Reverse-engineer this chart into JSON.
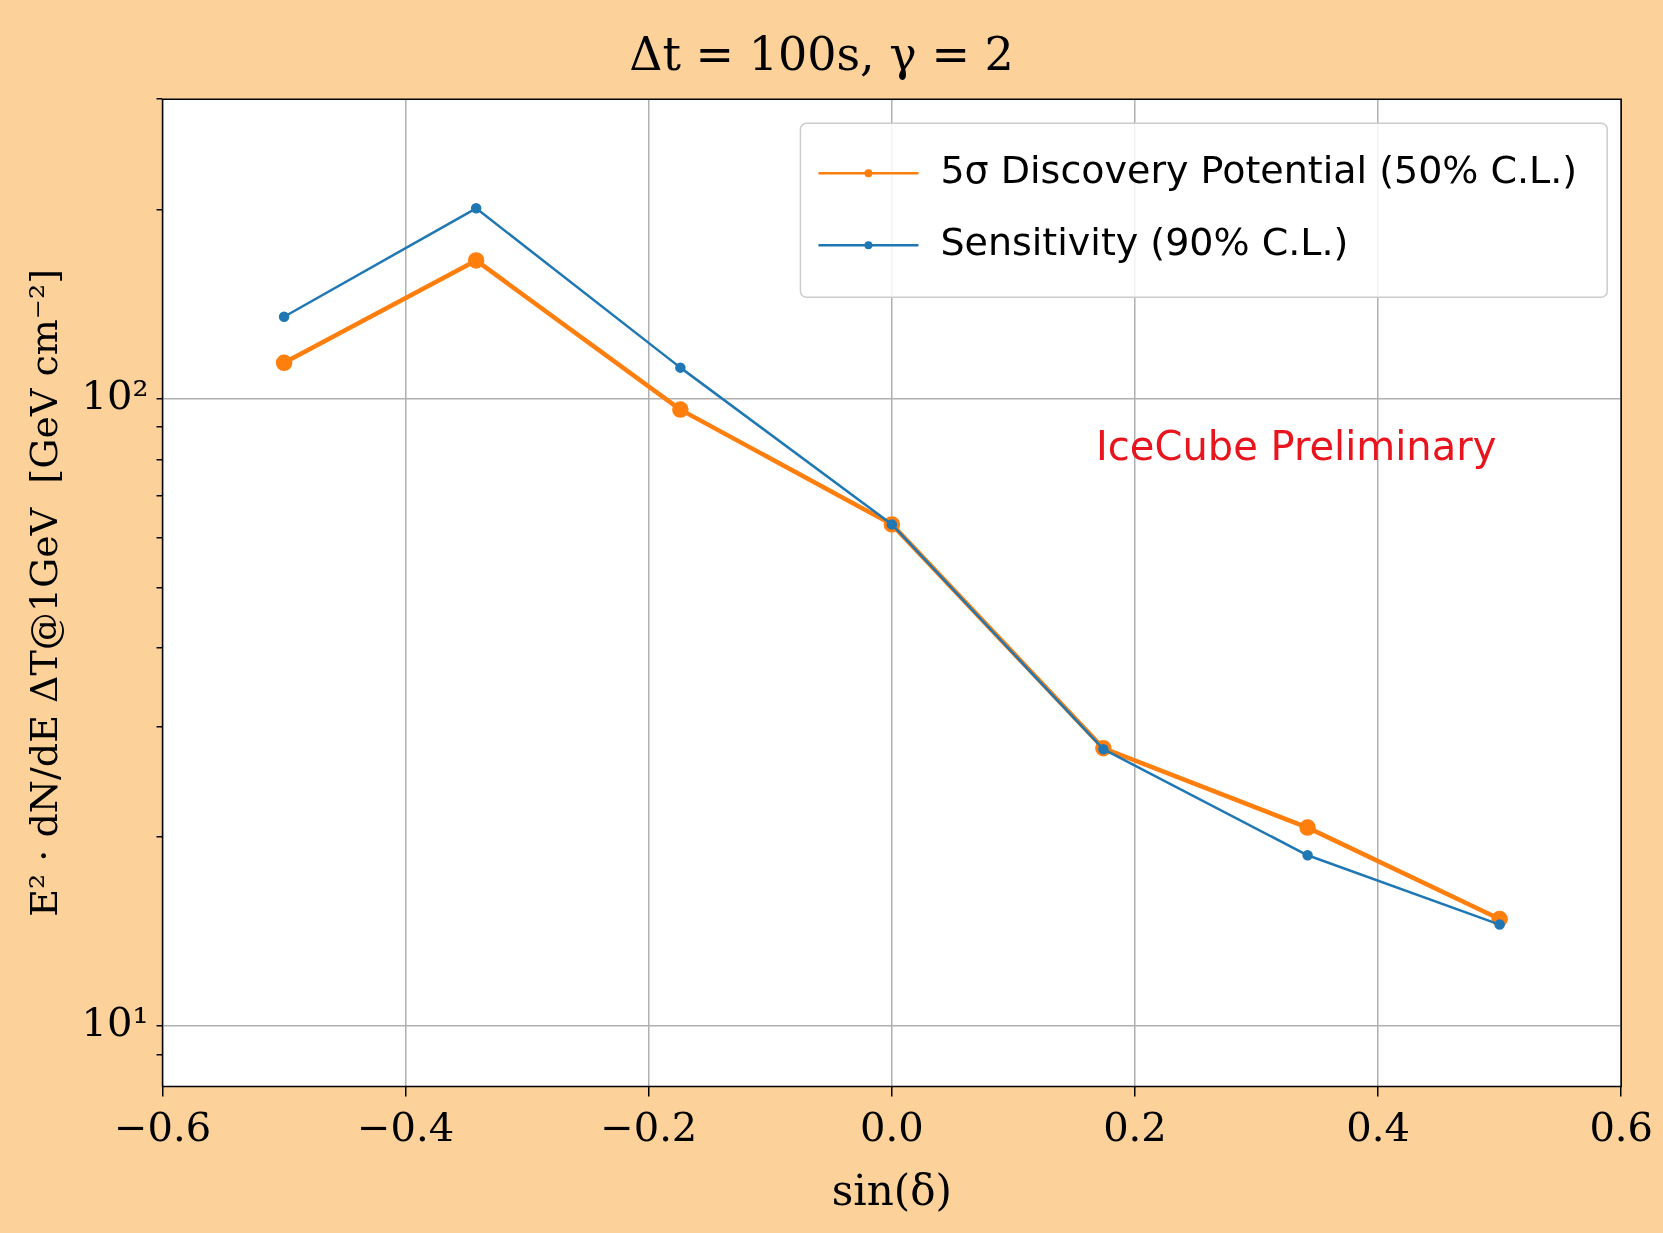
{
  "chart_data": {
    "type": "line",
    "title": "Δt = 100s, γ = 2",
    "xlabel": "sin(δ)",
    "ylabel": "E² · dN/dE ΔT@1GeV  [GeV cm⁻²]",
    "x": [
      -0.5,
      -0.342,
      -0.174,
      0,
      0.174,
      0.342,
      0.5
    ],
    "series": [
      {
        "name": "5σ Discovery Potential (50% C.L.)",
        "color": "#ff7f0e",
        "values": [
          114,
          166,
          96,
          63,
          27.7,
          20.7,
          14.8
        ]
      },
      {
        "name": "Sensitivity (90% C.L.)",
        "color": "#1f77b4",
        "values": [
          135,
          201,
          112,
          63,
          27.6,
          18.7,
          14.5
        ]
      }
    ],
    "xlim": [
      -0.6,
      0.6
    ],
    "xticks": [
      {
        "value": -0.6,
        "label": "−0.6"
      },
      {
        "value": -0.4,
        "label": "−0.4"
      },
      {
        "value": -0.2,
        "label": "−0.2"
      },
      {
        "value": 0,
        "label": "0.0"
      },
      {
        "value": 0.2,
        "label": "0.2"
      },
      {
        "value": 0.4,
        "label": "0.4"
      },
      {
        "value": 0.6,
        "label": "0.6"
      }
    ],
    "ylim": [
      8,
      300
    ],
    "yticks": [
      {
        "value": 9,
        "label": null
      },
      {
        "value": 10,
        "label": "10¹"
      },
      {
        "value": 20,
        "label": null
      },
      {
        "value": 30,
        "label": null
      },
      {
        "value": 40,
        "label": null
      },
      {
        "value": 50,
        "label": null
      },
      {
        "value": 60,
        "label": null
      },
      {
        "value": 70,
        "label": null
      },
      {
        "value": 80,
        "label": null
      },
      {
        "value": 90,
        "label": null
      },
      {
        "value": 100,
        "label": "10²"
      },
      {
        "value": 200,
        "label": null
      },
      {
        "value": 300,
        "label": null
      }
    ],
    "log": "y",
    "grid": true,
    "legend": "top right",
    "marker": "circle",
    "line_style": "solid",
    "annotations": [
      "IceCube Preliminary"
    ]
  }
}
